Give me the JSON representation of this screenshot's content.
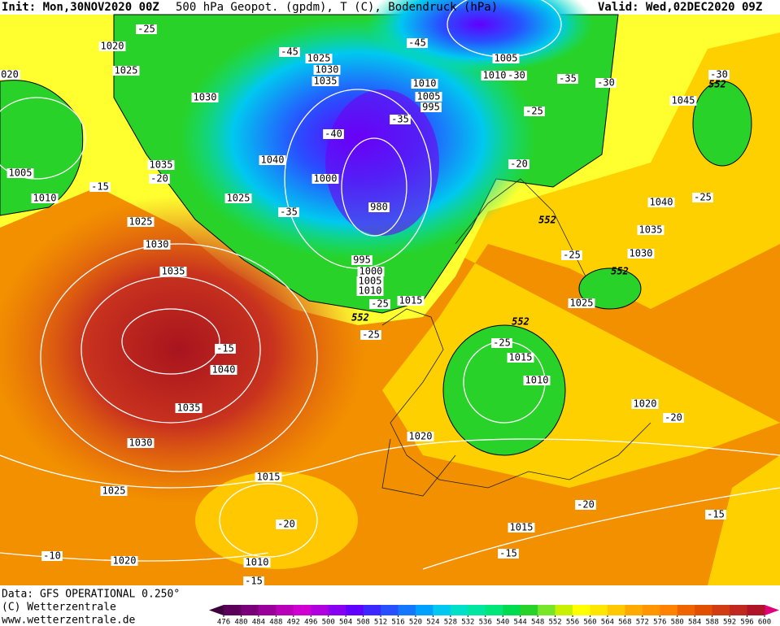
{
  "header": {
    "init": "Init: Mon,30NOV2020 00Z",
    "title": "500 hPa Geopot. (gpdm), T (C), Bodendruck (hPa)",
    "valid": "Valid: Wed,02DEC2020 09Z"
  },
  "footer": {
    "data": "Data: GFS OPERATIONAL 0.250°",
    "copyright": "(C) Wetterzentrale",
    "url": "www.wetterzentrale.de"
  },
  "map": {
    "pressure_labels": [
      "1020",
      "1025",
      "1030",
      "1035",
      "1005",
      "1010",
      "1025",
      "1030",
      "1035",
      "1040",
      "1035",
      "1030",
      "1025",
      "1020",
      "1015",
      "1010",
      "1025",
      "1030",
      "1035",
      "1040",
      "1000",
      "1025",
      "980",
      "995",
      "1000",
      "1005",
      "1010",
      "1015",
      "1020",
      "1015",
      "1010",
      "1025",
      "1030",
      "1035",
      "1040",
      "1045",
      "1005",
      "1010",
      "1005",
      "995",
      "1010",
      "1020",
      "1015",
      "020"
    ],
    "temperature_labels": [
      "-25",
      "-45",
      "-45",
      "-30",
      "-35",
      "-30",
      "-30",
      "-25",
      "-35",
      "-40",
      "-20",
      "-20",
      "-15",
      "-35",
      "-25",
      "-25",
      "-25",
      "-25",
      "-15",
      "-25",
      "-20",
      "-20",
      "-20",
      "-15",
      "-15",
      "-10",
      "-15"
    ],
    "height_labels": [
      "552",
      "552",
      "552",
      "552",
      "552"
    ]
  },
  "colorbar": {
    "ticks": [
      476,
      480,
      484,
      488,
      492,
      496,
      500,
      504,
      508,
      512,
      516,
      520,
      524,
      528,
      532,
      536,
      540,
      544,
      548,
      552,
      556,
      560,
      564,
      568,
      572,
      576,
      580,
      584,
      588,
      592,
      596,
      600
    ],
    "colors": [
      "#5a005a",
      "#7a007a",
      "#9a009a",
      "#b800b8",
      "#d000d0",
      "#b000e0",
      "#8800f0",
      "#6000ff",
      "#3c28ff",
      "#2850ff",
      "#1478ff",
      "#00a0ff",
      "#00c8f0",
      "#00e0c8",
      "#00e6a0",
      "#00e678",
      "#00dc50",
      "#28d228",
      "#78e628",
      "#c8f000",
      "#ffff00",
      "#ffe600",
      "#ffc800",
      "#ffaa00",
      "#ff9600",
      "#ff8200",
      "#f06400",
      "#e05000",
      "#d03c14",
      "#c02820",
      "#b01428"
    ],
    "low_color": "#3c003c",
    "high_color": "#e0007a"
  }
}
